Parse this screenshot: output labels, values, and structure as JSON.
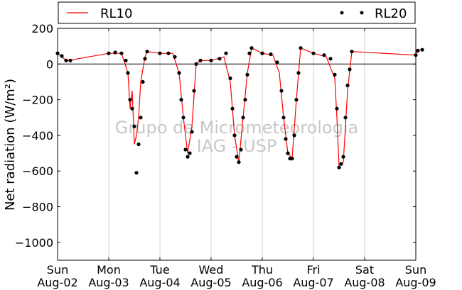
{
  "chart_data": {
    "type": "line",
    "ylabel": "Net radiation (W/m²)",
    "ylim": [
      -1100,
      200
    ],
    "yticks": [
      200,
      0,
      -200,
      -400,
      -600,
      -800,
      -1000
    ],
    "ytick_labels": [
      "200",
      "0",
      "−200",
      "−400",
      "−600",
      "−800",
      "−1000"
    ],
    "xlim": [
      "2015-08-02",
      "2015-08-09"
    ],
    "xtick_days": [
      "Sun",
      "Mon",
      "Tue",
      "Wed",
      "Thu",
      "Fri",
      "Sat",
      "Sun"
    ],
    "xtick_dates": [
      "Aug-02",
      "Aug-03",
      "Aug-04",
      "Aug-05",
      "Aug-06",
      "Aug-07",
      "Aug-08",
      "Aug-09"
    ],
    "grid": "vertical",
    "legend_position": "top",
    "watermark": [
      "Grupo de Micrometeorologia",
      "IAG - USP"
    ],
    "colors": {
      "RL10": "#ff0000",
      "RL20": "#000000"
    },
    "series": [
      {
        "name": "RL10",
        "style": "line",
        "points": [
          [
            "2015-08-02 00:00",
            60
          ],
          [
            "2015-08-02 03:00",
            30
          ],
          [
            "2015-08-02 05:00",
            20
          ],
          [
            "2015-08-03 00:00",
            60
          ],
          [
            "2015-08-03 06:00",
            60
          ],
          [
            "2015-08-03 09:00",
            -50
          ],
          [
            "2015-08-03 10:00",
            -250
          ],
          [
            "2015-08-03 11:00",
            -150
          ],
          [
            "2015-08-03 12:00",
            -450
          ],
          [
            "2015-08-03 13:00",
            -400
          ],
          [
            "2015-08-03 14:00",
            -300
          ],
          [
            "2015-08-03 15:00",
            -100
          ],
          [
            "2015-08-03 17:00",
            40
          ],
          [
            "2015-08-03 18:00",
            70
          ],
          [
            "2015-08-04 00:00",
            60
          ],
          [
            "2015-08-04 06:00",
            60
          ],
          [
            "2015-08-04 09:00",
            -50
          ],
          [
            "2015-08-04 11:00",
            -300
          ],
          [
            "2015-08-04 13:00",
            -500
          ],
          [
            "2015-08-04 15:00",
            -350
          ],
          [
            "2015-08-04 17:00",
            0
          ],
          [
            "2015-08-04 19:00",
            20
          ],
          [
            "2015-08-05 00:00",
            20
          ],
          [
            "2015-08-05 06:00",
            40
          ],
          [
            "2015-08-05 09:00",
            -100
          ],
          [
            "2015-08-05 11:00",
            -400
          ],
          [
            "2015-08-05 13:00",
            -550
          ],
          [
            "2015-08-05 15:00",
            -300
          ],
          [
            "2015-08-05 17:00",
            -50
          ],
          [
            "2015-08-05 19:00",
            90
          ],
          [
            "2015-08-06 00:00",
            60
          ],
          [
            "2015-08-06 05:00",
            50
          ],
          [
            "2015-08-06 08:00",
            -50
          ],
          [
            "2015-08-06 10:00",
            -300
          ],
          [
            "2015-08-06 12:00",
            -500
          ],
          [
            "2015-08-06 14:00",
            -530
          ],
          [
            "2015-08-06 16:00",
            -200
          ],
          [
            "2015-08-06 18:00",
            90
          ],
          [
            "2015-08-07 00:00",
            60
          ],
          [
            "2015-08-07 06:00",
            40
          ],
          [
            "2015-08-07 10:00",
            -80
          ],
          [
            "2015-08-07 11:00",
            -300
          ],
          [
            "2015-08-07 12:00",
            -570
          ],
          [
            "2015-08-07 14:00",
            -550
          ],
          [
            "2015-08-07 16:00",
            -150
          ],
          [
            "2015-08-07 18:00",
            70
          ],
          [
            "2015-08-09 00:00",
            50
          ],
          [
            "2015-08-09 01:00",
            80
          ]
        ]
      },
      {
        "name": "RL20",
        "style": "dots",
        "points": [
          [
            "2015-08-02 00:00",
            60
          ],
          [
            "2015-08-02 02:00",
            45
          ],
          [
            "2015-08-02 04:00",
            20
          ],
          [
            "2015-08-02 06:00",
            20
          ],
          [
            "2015-08-03 00:00",
            60
          ],
          [
            "2015-08-03 03:00",
            65
          ],
          [
            "2015-08-03 06:00",
            60
          ],
          [
            "2015-08-03 08:00",
            20
          ],
          [
            "2015-08-03 09:00",
            -50
          ],
          [
            "2015-08-03 10:00",
            -200
          ],
          [
            "2015-08-03 11:00",
            -250
          ],
          [
            "2015-08-03 12:00",
            -350
          ],
          [
            "2015-08-03 13:00",
            -610
          ],
          [
            "2015-08-03 14:00",
            -450
          ],
          [
            "2015-08-03 15:00",
            -300
          ],
          [
            "2015-08-03 16:00",
            -100
          ],
          [
            "2015-08-03 17:00",
            30
          ],
          [
            "2015-08-03 18:00",
            70
          ],
          [
            "2015-08-04 00:00",
            60
          ],
          [
            "2015-08-04 04:00",
            60
          ],
          [
            "2015-08-04 07:00",
            40
          ],
          [
            "2015-08-04 09:00",
            -50
          ],
          [
            "2015-08-04 10:00",
            -200
          ],
          [
            "2015-08-04 11:00",
            -300
          ],
          [
            "2015-08-04 12:00",
            -480
          ],
          [
            "2015-08-04 13:00",
            -520
          ],
          [
            "2015-08-04 14:00",
            -500
          ],
          [
            "2015-08-04 15:00",
            -380
          ],
          [
            "2015-08-04 16:00",
            -150
          ],
          [
            "2015-08-04 17:00",
            0
          ],
          [
            "2015-08-04 19:00",
            20
          ],
          [
            "2015-08-05 00:00",
            20
          ],
          [
            "2015-08-05 04:00",
            30
          ],
          [
            "2015-08-05 07:00",
            60
          ],
          [
            "2015-08-05 09:00",
            -80
          ],
          [
            "2015-08-05 10:00",
            -250
          ],
          [
            "2015-08-05 11:00",
            -400
          ],
          [
            "2015-08-05 12:00",
            -520
          ],
          [
            "2015-08-05 13:00",
            -550
          ],
          [
            "2015-08-05 14:00",
            -480
          ],
          [
            "2015-08-05 15:00",
            -300
          ],
          [
            "2015-08-05 16:00",
            -200
          ],
          [
            "2015-08-05 17:00",
            -60
          ],
          [
            "2015-08-05 18:00",
            60
          ],
          [
            "2015-08-05 19:00",
            90
          ],
          [
            "2015-08-06 00:00",
            60
          ],
          [
            "2015-08-06 04:00",
            55
          ],
          [
            "2015-08-06 07:00",
            10
          ],
          [
            "2015-08-06 09:00",
            -150
          ],
          [
            "2015-08-06 10:00",
            -300
          ],
          [
            "2015-08-06 11:00",
            -420
          ],
          [
            "2015-08-06 12:00",
            -500
          ],
          [
            "2015-08-06 13:00",
            -530
          ],
          [
            "2015-08-06 14:00",
            -530
          ],
          [
            "2015-08-06 15:00",
            -400
          ],
          [
            "2015-08-06 16:00",
            -200
          ],
          [
            "2015-08-06 17:00",
            -50
          ],
          [
            "2015-08-06 18:00",
            90
          ],
          [
            "2015-08-07 00:00",
            60
          ],
          [
            "2015-08-07 05:00",
            50
          ],
          [
            "2015-08-07 08:00",
            30
          ],
          [
            "2015-08-07 10:00",
            -60
          ],
          [
            "2015-08-07 11:00",
            -250
          ],
          [
            "2015-08-07 12:00",
            -580
          ],
          [
            "2015-08-07 13:00",
            -560
          ],
          [
            "2015-08-07 14:00",
            -520
          ],
          [
            "2015-08-07 15:00",
            -300
          ],
          [
            "2015-08-07 16:00",
            -120
          ],
          [
            "2015-08-07 17:00",
            -30
          ],
          [
            "2015-08-07 18:00",
            70
          ],
          [
            "2015-08-09 00:00",
            50
          ],
          [
            "2015-08-09 01:00",
            75
          ],
          [
            "2015-08-09 03:00",
            80
          ]
        ]
      }
    ]
  }
}
